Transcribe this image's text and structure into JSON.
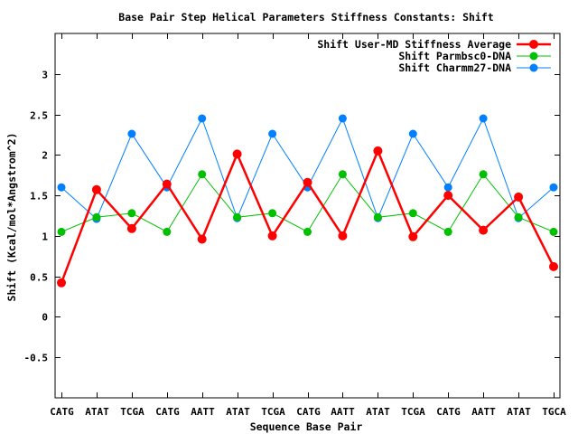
{
  "chart_data": {
    "type": "line",
    "title": "Base Pair Step Helical Parameters Stiffness Constants: Shift",
    "xlabel": "Sequence Base Pair",
    "ylabel": "Shift (Kcal/mol*Angstrom^2)",
    "categories": [
      "CATG",
      "ATAT",
      "TCGA",
      "CATG",
      "AATT",
      "ATAT",
      "TCGA",
      "CATG",
      "AATT",
      "ATAT",
      "TCGA",
      "CATG",
      "AATT",
      "ATAT",
      "TGCA"
    ],
    "ylim": [
      -1,
      3.5
    ],
    "yticks": [
      -0.5,
      0,
      0.5,
      1,
      1.5,
      2,
      2.5,
      3
    ],
    "ytick_labels": [
      "-0.5",
      "0",
      "0.5",
      "1",
      "1.5",
      "2",
      "2.5",
      "3"
    ],
    "grid": false,
    "legend_position": "top-right",
    "series": [
      {
        "name": "Shift User-MD Stiffness Average",
        "color": "#ff0000",
        "values": [
          0.42,
          1.57,
          1.09,
          1.64,
          0.96,
          2.01,
          1.0,
          1.66,
          1.0,
          2.05,
          0.99,
          1.5,
          1.07,
          1.48,
          0.62
        ]
      },
      {
        "name": "Shift Parmbsc0-DNA",
        "color": "#00c000",
        "values": [
          1.05,
          1.23,
          1.28,
          1.05,
          1.76,
          1.23,
          1.28,
          1.05,
          1.76,
          1.23,
          1.28,
          1.05,
          1.76,
          1.23,
          1.05
        ]
      },
      {
        "name": "Shift Charmm27-DNA",
        "color": "#0080ff",
        "values": [
          1.6,
          1.21,
          2.26,
          1.6,
          2.45,
          1.22,
          2.26,
          1.6,
          2.45,
          1.22,
          2.26,
          1.6,
          2.45,
          1.22,
          1.6
        ]
      }
    ]
  }
}
